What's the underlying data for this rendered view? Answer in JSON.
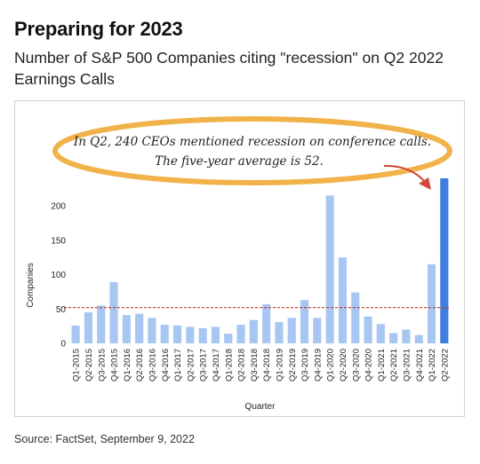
{
  "header": {
    "title": "Preparing for 2023",
    "subtitle": "Number of S&P 500 Companies citing \"recession\" on Q2 2022 Earnings Calls"
  },
  "annotation": {
    "line1": "In Q2, 240 CEOs mentioned recession on conference calls.",
    "line2": "The five-year average is 52."
  },
  "footer": {
    "source": "Source: FactSet, September 9, 2022"
  },
  "colors": {
    "bar": "#a7c7f2",
    "highlight": "#3f7ee0",
    "average_line": "#c0392b",
    "callout": "#f2b24a"
  },
  "chart_data": {
    "type": "bar",
    "xlabel": "Quarter",
    "ylabel": "Companies",
    "ylim": [
      0,
      240
    ],
    "yticks": [
      0,
      50,
      100,
      150,
      200
    ],
    "grid": false,
    "average_line": 52,
    "highlight_category": "Q2-2022",
    "categories": [
      "Q1-2015",
      "Q2-2015",
      "Q3-2015",
      "Q4-2015",
      "Q1-2016",
      "Q2-2016",
      "Q3-2016",
      "Q4-2016",
      "Q1-2017",
      "Q2-2017",
      "Q3-2017",
      "Q4-2017",
      "Q1-2018",
      "Q2-2018",
      "Q3-2018",
      "Q4-2018",
      "Q1-2019",
      "Q2-2019",
      "Q3-2019",
      "Q4-2019",
      "Q1-2020",
      "Q2-2020",
      "Q3-2020",
      "Q4-2020",
      "Q1-2021",
      "Q2-2021",
      "Q3-2021",
      "Q4-2021",
      "Q1-2022",
      "Q2-2022"
    ],
    "values": [
      26,
      45,
      55,
      89,
      41,
      43,
      37,
      27,
      26,
      24,
      22,
      24,
      14,
      27,
      34,
      57,
      31,
      37,
      63,
      37,
      215,
      125,
      74,
      39,
      28,
      15,
      20,
      12,
      115,
      240
    ]
  }
}
